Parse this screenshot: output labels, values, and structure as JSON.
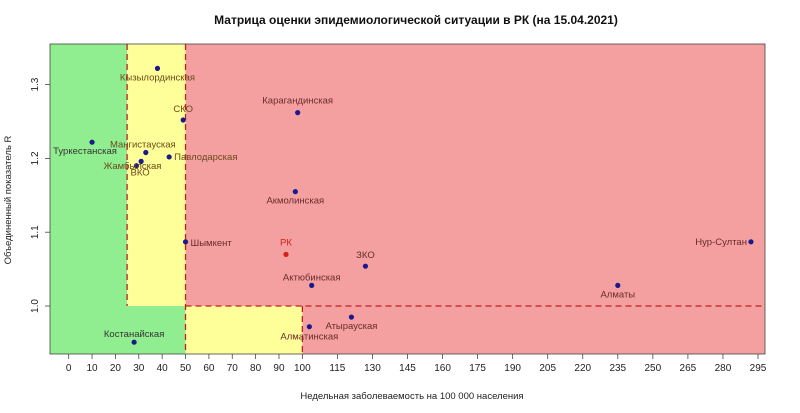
{
  "chart_data": {
    "type": "scatter",
    "title": "Матрица оценки эпидемиологической ситуации в РК (на 15.04.2021)",
    "xlabel": "Недельная заболеваемость на 100 000 населения",
    "ylabel": "Объединенный показатель R",
    "xlim": [
      -8,
      298
    ],
    "ylim": [
      0.935,
      1.355
    ],
    "x_ticks": [
      0,
      10,
      20,
      30,
      40,
      50,
      60,
      70,
      80,
      90,
      100,
      115,
      130,
      145,
      160,
      175,
      190,
      205,
      220,
      235,
      250,
      265,
      280,
      295
    ],
    "y_ticks": [
      1.0,
      1.1,
      1.2,
      1.3
    ],
    "y_tick_labels": [
      "1.0",
      "1.1",
      "1.2",
      "1.3"
    ],
    "zones": [
      {
        "x_from": -8,
        "x_to": 25,
        "y_from": 1.0,
        "y_to": 1.355,
        "color": "#90ee90"
      },
      {
        "x_from": 25,
        "x_to": 50,
        "y_from": 1.0,
        "y_to": 1.355,
        "color": "#ffff99"
      },
      {
        "x_from": 50,
        "x_to": 298,
        "y_from": 1.0,
        "y_to": 1.355,
        "color": "#f4a0a0"
      },
      {
        "x_from": -8,
        "x_to": 50,
        "y_from": 0.935,
        "y_to": 1.0,
        "color": "#90ee90"
      },
      {
        "x_from": 50,
        "x_to": 100,
        "y_from": 0.935,
        "y_to": 1.0,
        "color": "#ffff99"
      },
      {
        "x_from": 100,
        "x_to": 298,
        "y_from": 0.935,
        "y_to": 1.0,
        "color": "#f4a0a0"
      }
    ],
    "threshold_lines": [
      {
        "orientation": "vertical",
        "x": 25,
        "y_from": 1.0,
        "y_to": 1.355
      },
      {
        "orientation": "vertical",
        "x": 50,
        "y_from": 0.935,
        "y_to": 1.355
      },
      {
        "orientation": "vertical",
        "x": 100,
        "y_from": 0.935,
        "y_to": 1.0
      },
      {
        "orientation": "horizontal",
        "y": 1.0,
        "x_from": 50,
        "x_to": 298
      }
    ],
    "points": [
      {
        "label": "Кызылординская",
        "x": 38,
        "y": 1.322,
        "color": "#1a1a8c",
        "label_color": "#6b4a1a"
      },
      {
        "label": "СКО",
        "x": 49,
        "y": 1.252,
        "color": "#1a1a8c",
        "label_color": "#6b4a1a"
      },
      {
        "label": "Туркестанская",
        "x": 10,
        "y": 1.222,
        "color": "#1a1a8c",
        "label_color": "#333333"
      },
      {
        "label": "Мангистауская",
        "x": 33,
        "y": 1.208,
        "color": "#1a1a8c",
        "label_color": "#6b4a1a"
      },
      {
        "label": "Павлодарская",
        "x": 43,
        "y": 1.202,
        "color": "#1a1a8c",
        "label_color": "#6b4a1a"
      },
      {
        "label": "ВКО",
        "x": 31,
        "y": 1.196,
        "color": "#1a1a8c",
        "label_color": "#6b4a1a"
      },
      {
        "label": "Жамбылская",
        "x": 29,
        "y": 1.19,
        "color": "#1a1a8c",
        "label_color": "#6b4a1a"
      },
      {
        "label": "Карагандинская",
        "x": 98,
        "y": 1.262,
        "color": "#1a1a8c",
        "label_color": "#6b2a2a"
      },
      {
        "label": "Акмолинская",
        "x": 97,
        "y": 1.155,
        "color": "#1a1a8c",
        "label_color": "#6b2a2a"
      },
      {
        "label": "Шымкент",
        "x": 50,
        "y": 1.087,
        "color": "#1a1a8c",
        "label_color": "#6b2a2a"
      },
      {
        "label": "РК",
        "x": 93,
        "y": 1.07,
        "color": "#d62020",
        "label_color": "#d62020"
      },
      {
        "label": "ЗКО",
        "x": 127,
        "y": 1.054,
        "color": "#1a1a8c",
        "label_color": "#6b2a2a"
      },
      {
        "label": "Актюбинская",
        "x": 104,
        "y": 1.028,
        "color": "#1a1a8c",
        "label_color": "#6b2a2a"
      },
      {
        "label": "Нур-Султан",
        "x": 292,
        "y": 1.087,
        "color": "#1a1a8c",
        "label_color": "#6b2a2a"
      },
      {
        "label": "Алматы",
        "x": 235,
        "y": 1.028,
        "color": "#1a1a8c",
        "label_color": "#6b2a2a"
      },
      {
        "label": "Атырауская",
        "x": 121,
        "y": 0.985,
        "color": "#1a1a8c",
        "label_color": "#6b2a2a"
      },
      {
        "label": "Алматинская",
        "x": 103,
        "y": 0.972,
        "color": "#1a1a8c",
        "label_color": "#6b2a2a"
      },
      {
        "label": "Костанайская",
        "x": 28,
        "y": 0.951,
        "color": "#1a1a8c",
        "label_color": "#333333"
      }
    ]
  }
}
